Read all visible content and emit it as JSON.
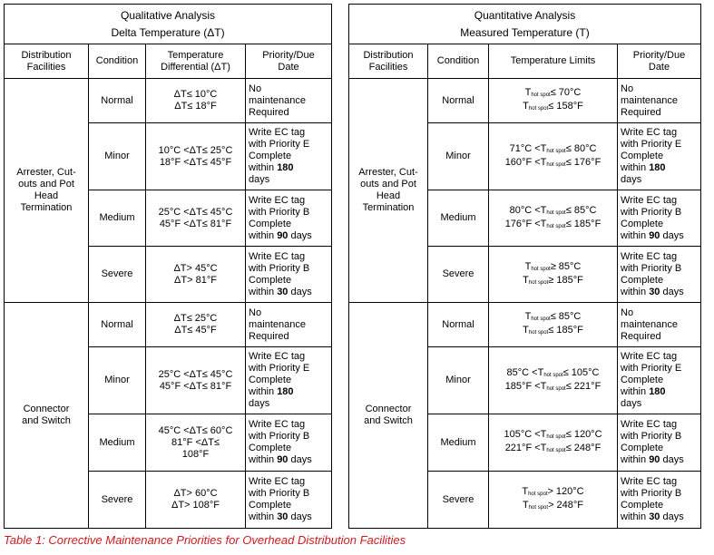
{
  "left": {
    "title1": "Qualitative Analysis",
    "title2": "Delta Temperature (ΔT)",
    "headers": {
      "facility": [
        "Distribution",
        "Facilities"
      ],
      "condition": "Condition",
      "value": [
        "Temperature",
        "Differential (ΔT)"
      ],
      "priority": [
        "Priority/Due",
        "Date"
      ]
    },
    "groups": [
      {
        "facility": [
          "Arrester, Cut-",
          "outs and Pot",
          "Head",
          "Termination"
        ],
        "rows": [
          {
            "condition": "Normal",
            "value": [
              "ΔT≤ 10°C",
              "ΔT≤ 18°F"
            ],
            "priority": [
              "No",
              "maintenance",
              "Required"
            ]
          },
          {
            "condition": "Minor",
            "value": [
              "10°C <ΔT≤ 25°C",
              "18°F <ΔT≤ 45°F"
            ],
            "priority": [
              "Write EC tag",
              "with Priority E",
              "Complete"
            ],
            "due_prefix": "within ",
            "due_bold": "180",
            "due_last": "days"
          },
          {
            "condition": "Medium",
            "value": [
              "25°C <ΔT≤ 45°C",
              "45°F <ΔT≤ 81°F"
            ],
            "priority": [
              "Write EC tag",
              "with Priority B",
              "Complete"
            ],
            "due_prefix": "within ",
            "due_bold": "90",
            "due_suffix": " days"
          },
          {
            "condition": "Severe",
            "value": [
              "ΔT> 45°C",
              "ΔT> 81°F"
            ],
            "priority": [
              "Write EC tag",
              "with Priority B",
              "Complete"
            ],
            "due_prefix": "within ",
            "due_bold": "30",
            "due_suffix": " days"
          }
        ]
      },
      {
        "facility": [
          "Connector",
          "and Switch"
        ],
        "rows": [
          {
            "condition": "Normal",
            "value": [
              "ΔT≤ 25°C",
              "ΔT≤ 45°F"
            ],
            "priority": [
              "No",
              "maintenance",
              "Required"
            ]
          },
          {
            "condition": "Minor",
            "value": [
              "25°C <ΔT≤ 45°C",
              "45°F <ΔT≤ 81°F"
            ],
            "priority": [
              "Write EC tag",
              "with Priority E",
              "Complete"
            ],
            "due_prefix": "within ",
            "due_bold": "180",
            "due_last": "days"
          },
          {
            "condition": "Medium",
            "value": [
              "45°C <ΔT≤ 60°C",
              "81°F <ΔT≤",
              "108°F"
            ],
            "priority": [
              "Write EC tag",
              "with Priority B",
              "Complete"
            ],
            "due_prefix": "within ",
            "due_bold": "90",
            "due_suffix": " days"
          },
          {
            "condition": "Severe",
            "value": [
              "ΔT> 60°C",
              "ΔT> 108°F"
            ],
            "priority": [
              "Write EC tag",
              "with Priority B",
              "Complete"
            ],
            "due_prefix": "within ",
            "due_bold": "30",
            "due_suffix": " days"
          }
        ]
      }
    ]
  },
  "right": {
    "title1": "Quantitative Analysis",
    "title2": "Measured Temperature (T)",
    "hot_spot_sub": "hot spot",
    "headers": {
      "facility": [
        "Distribution",
        "Facilities"
      ],
      "condition": "Condition",
      "value": [
        "Temperature Limits"
      ],
      "priority": [
        "Priority/Due",
        "Date"
      ]
    },
    "groups": [
      {
        "facility": [
          "Arrester, Cut-",
          "outs and Pot",
          "Head",
          "Termination"
        ],
        "rows": [
          {
            "condition": "Normal",
            "value": [
              [
                "T",
                "≤ 70°C"
              ],
              [
                "T",
                "≤ 158°F"
              ]
            ],
            "priority": [
              "No",
              "maintenance",
              "Required"
            ]
          },
          {
            "condition": "Minor",
            "value": [
              [
                "71°C <T",
                "≤ 80°C"
              ],
              [
                "160°F <T",
                "≤ 176°F"
              ]
            ],
            "priority": [
              "Write EC tag",
              "with Priority E",
              "Complete"
            ],
            "due_prefix": "within ",
            "due_bold": "180",
            "due_last": "days"
          },
          {
            "condition": "Medium",
            "value": [
              [
                "80°C <T",
                "≤ 85°C"
              ],
              [
                "176°F <T",
                "≤ 185°F"
              ]
            ],
            "priority": [
              "Write EC tag",
              "with Priority B",
              "Complete"
            ],
            "due_prefix": "within ",
            "due_bold": "90",
            "due_suffix": " days"
          },
          {
            "condition": "Severe",
            "value": [
              [
                "T",
                "≥ 85°C"
              ],
              [
                "T",
                "≥ 185°F"
              ]
            ],
            "priority": [
              "Write EC tag",
              "with Priority B",
              "Complete"
            ],
            "due_prefix": "within ",
            "due_bold": "30",
            "due_suffix": " days"
          }
        ]
      },
      {
        "facility": [
          "Connector",
          "and Switch"
        ],
        "rows": [
          {
            "condition": "Normal",
            "value": [
              [
                "T",
                "≤ 85°C"
              ],
              [
                "T",
                "≤ 185°F"
              ]
            ],
            "priority": [
              "No",
              "maintenance",
              "Required"
            ]
          },
          {
            "condition": "Minor",
            "value": [
              [
                "85°C <T",
                "≤ 105°C"
              ],
              [
                "185°F <T",
                "≤ 221°F"
              ]
            ],
            "priority": [
              "Write EC tag",
              "with Priority E",
              "Complete"
            ],
            "due_prefix": "within ",
            "due_bold": "180",
            "due_last": "days"
          },
          {
            "condition": "Medium",
            "value": [
              [
                "105°C <T",
                "≤ 120°C"
              ],
              [
                "221°F <T",
                "≤ 248°F"
              ]
            ],
            "priority": [
              "Write EC tag",
              "with Priority B",
              "Complete"
            ],
            "due_prefix": "within ",
            "due_bold": "90",
            "due_suffix": " days"
          },
          {
            "condition": "Severe",
            "value": [
              [
                "T",
                "> 120°C"
              ],
              [
                "T",
                "> 248°F"
              ]
            ],
            "priority": [
              "Write EC tag",
              "with Priority B",
              "Complete"
            ],
            "due_prefix": "within ",
            "due_bold": "30",
            "due_suffix": " days"
          }
        ]
      }
    ]
  },
  "caption": "Table 1: Corrective Maintenance Priorities for Overhead Distribution Facilities",
  "caption_color": "#d0191e"
}
